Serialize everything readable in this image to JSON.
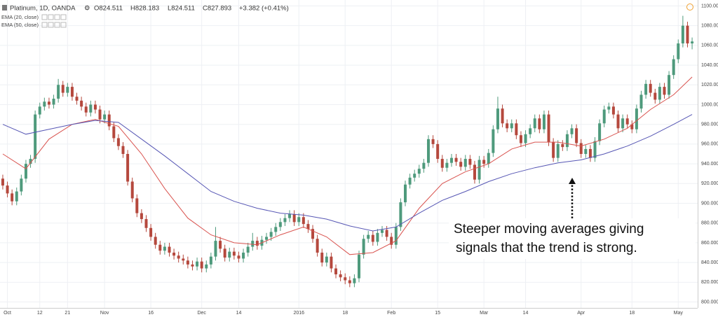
{
  "chart_data": {
    "type": "candlestick",
    "title": "Platinum, 1D, OANDA",
    "quote": [
      "O824.511",
      "H828.183",
      "L824.511",
      "C827.893",
      "+3.382 (+0.41%)"
    ],
    "annotation": [
      "Steeper moving averages giving",
      "signals that the trend is strong."
    ],
    "up_color": "#4e9a7c",
    "down_color": "#b5483d",
    "grid": true,
    "ylim": [
      794,
      1106
    ],
    "yticks": [
      {
        "value": 800,
        "label": "800.000"
      },
      {
        "value": 820,
        "label": "820.000"
      },
      {
        "value": 840,
        "label": "840.000"
      },
      {
        "value": 860,
        "label": "860.000"
      },
      {
        "value": 880,
        "label": "880.000"
      },
      {
        "value": 900,
        "label": "900.000"
      },
      {
        "value": 920,
        "label": "920.000"
      },
      {
        "value": 940,
        "label": "940.000"
      },
      {
        "value": 960,
        "label": "960.000"
      },
      {
        "value": 980,
        "label": "980.000"
      },
      {
        "value": 1000,
        "label": "1000.000"
      },
      {
        "value": 1020,
        "label": "1020.000"
      },
      {
        "value": 1040,
        "label": "1040.000"
      },
      {
        "value": 1060,
        "label": "1060.000"
      },
      {
        "value": 1080,
        "label": "1080.000"
      },
      {
        "value": 1100,
        "label": "1100.000"
      }
    ],
    "xlim": [
      -0.6,
      150.2
    ],
    "xticks": [
      {
        "value": 1,
        "label": "Oct"
      },
      {
        "value": 8,
        "label": "12"
      },
      {
        "value": 14,
        "label": "21"
      },
      {
        "value": 22,
        "label": "Nov"
      },
      {
        "value": 32,
        "label": "16"
      },
      {
        "value": 43,
        "label": "Dec"
      },
      {
        "value": 51,
        "label": "14"
      },
      {
        "value": 64,
        "label": "2016"
      },
      {
        "value": 74,
        "label": "18"
      },
      {
        "value": 84,
        "label": "Feb"
      },
      {
        "value": 94,
        "label": "15"
      },
      {
        "value": 104,
        "label": "Mar"
      },
      {
        "value": 113,
        "label": "14"
      },
      {
        "value": 125,
        "label": "Apr"
      },
      {
        "value": 136,
        "label": "18"
      },
      {
        "value": 146,
        "label": "May"
      }
    ],
    "x": [
      0,
      1,
      2,
      3,
      4,
      5,
      6,
      7,
      8,
      9,
      10,
      11,
      12,
      13,
      14,
      15,
      16,
      17,
      18,
      19,
      20,
      21,
      22,
      23,
      24,
      25,
      26,
      27,
      28,
      29,
      30,
      31,
      32,
      33,
      34,
      35,
      36,
      37,
      38,
      39,
      40,
      41,
      42,
      43,
      44,
      45,
      46,
      47,
      48,
      49,
      50,
      51,
      52,
      53,
      54,
      55,
      56,
      57,
      58,
      59,
      60,
      61,
      62,
      63,
      64,
      65,
      66,
      67,
      68,
      69,
      70,
      71,
      72,
      73,
      74,
      75,
      76,
      77,
      78,
      79,
      80,
      81,
      82,
      83,
      84,
      85,
      86,
      87,
      88,
      89,
      90,
      91,
      92,
      93,
      94,
      95,
      96,
      97,
      98,
      99,
      100,
      101,
      102,
      103,
      104,
      105,
      106,
      107,
      108,
      109,
      110,
      111,
      112,
      113,
      114,
      115,
      116,
      117,
      118,
      119,
      120,
      121,
      122,
      123,
      124,
      125,
      126,
      127,
      128,
      129,
      130,
      131,
      132,
      133,
      134,
      135,
      136,
      137,
      138,
      139,
      140,
      141,
      142,
      143,
      144,
      145,
      146,
      147,
      148,
      149
    ],
    "open": [
      925,
      918,
      910,
      902,
      912,
      925,
      940,
      945,
      990,
      998,
      1003,
      1000,
      1006,
      1020,
      1012,
      1018,
      1008,
      1004,
      998,
      992,
      1000,
      995,
      985,
      990,
      978,
      966,
      958,
      950,
      922,
      905,
      890,
      884,
      875,
      866,
      858,
      852,
      856,
      850,
      847,
      844,
      842,
      838,
      836,
      841,
      834,
      838,
      846,
      862,
      854,
      845,
      851,
      847,
      844,
      850,
      856,
      862,
      857,
      863,
      866,
      871,
      876,
      881,
      885,
      889,
      881,
      886,
      879,
      874,
      864,
      850,
      840,
      846,
      834,
      828,
      825,
      822,
      819,
      824,
      848,
      864,
      868,
      861,
      870,
      873,
      866,
      858,
      876,
      901,
      919,
      926,
      930,
      935,
      941,
      965,
      960,
      945,
      936,
      941,
      946,
      942,
      937,
      945,
      939,
      924,
      944,
      940,
      951,
      975,
      996,
      981,
      976,
      981,
      969,
      961,
      970,
      976,
      986,
      975,
      990,
      962,
      946,
      960,
      957,
      970,
      976,
      961,
      950,
      955,
      946,
      963,
      981,
      995,
      998,
      990,
      976,
      986,
      980,
      975,
      996,
      1010,
      1021,
      1012,
      1005,
      1018,
      1010,
      1030,
      1046,
      1062,
      1080,
      1062
    ],
    "high": [
      929,
      922,
      914,
      916,
      929,
      944,
      949,
      994,
      1002,
      1007,
      1007,
      1010,
      1026,
      1024,
      1022,
      1022,
      1012,
      1008,
      1002,
      1004,
      1004,
      999,
      994,
      994,
      982,
      970,
      962,
      954,
      926,
      909,
      894,
      888,
      879,
      870,
      862,
      860,
      860,
      854,
      851,
      848,
      846,
      842,
      845,
      845,
      842,
      850,
      876,
      866,
      858,
      855,
      855,
      851,
      854,
      860,
      870,
      866,
      867,
      870,
      875,
      880,
      885,
      889,
      893,
      893,
      890,
      890,
      883,
      878,
      868,
      854,
      850,
      850,
      838,
      832,
      829,
      826,
      828,
      852,
      868,
      872,
      872,
      874,
      877,
      877,
      870,
      880,
      905,
      923,
      930,
      934,
      939,
      945,
      969,
      969,
      964,
      949,
      945,
      950,
      950,
      946,
      949,
      949,
      943,
      948,
      948,
      955,
      979,
      1008,
      1000,
      985,
      985,
      985,
      973,
      974,
      980,
      990,
      990,
      994,
      994,
      966,
      964,
      964,
      974,
      980,
      980,
      965,
      959,
      959,
      967,
      985,
      999,
      1002,
      1002,
      994,
      990,
      990,
      984,
      1000,
      1014,
      1025,
      1025,
      1016,
      1022,
      1022,
      1034,
      1050,
      1066,
      1090,
      1084,
      1068
    ],
    "low": [
      914,
      906,
      898,
      898,
      908,
      921,
      936,
      941,
      986,
      994,
      996,
      996,
      1002,
      1008,
      1008,
      1004,
      1000,
      994,
      988,
      988,
      991,
      981,
      981,
      974,
      962,
      954,
      946,
      918,
      901,
      886,
      880,
      871,
      862,
      854,
      848,
      848,
      846,
      843,
      840,
      838,
      834,
      832,
      832,
      830,
      830,
      834,
      842,
      850,
      841,
      841,
      843,
      840,
      840,
      846,
      852,
      853,
      853,
      859,
      862,
      867,
      872,
      877,
      881,
      877,
      877,
      875,
      870,
      860,
      846,
      836,
      836,
      830,
      824,
      821,
      818,
      815,
      815,
      820,
      844,
      860,
      857,
      857,
      866,
      862,
      854,
      854,
      872,
      897,
      915,
      922,
      926,
      931,
      937,
      956,
      941,
      932,
      932,
      937,
      938,
      933,
      933,
      935,
      920,
      920,
      936,
      936,
      947,
      971,
      977,
      972,
      972,
      965,
      957,
      957,
      966,
      972,
      971,
      971,
      958,
      942,
      942,
      953,
      953,
      966,
      957,
      946,
      946,
      942,
      942,
      959,
      977,
      991,
      986,
      972,
      972,
      976,
      971,
      971,
      992,
      1006,
      1008,
      1001,
      1001,
      1006,
      1006,
      1026,
      1042,
      1058,
      1058,
      1056
    ],
    "close": [
      918,
      910,
      902,
      912,
      925,
      940,
      945,
      990,
      998,
      1003,
      1000,
      1006,
      1020,
      1012,
      1018,
      1008,
      1004,
      998,
      992,
      1000,
      995,
      985,
      990,
      978,
      966,
      958,
      950,
      922,
      905,
      890,
      884,
      875,
      866,
      858,
      852,
      856,
      850,
      847,
      844,
      842,
      838,
      836,
      841,
      834,
      838,
      846,
      862,
      854,
      845,
      851,
      847,
      844,
      850,
      856,
      862,
      857,
      863,
      866,
      871,
      876,
      881,
      885,
      889,
      881,
      886,
      879,
      874,
      864,
      850,
      840,
      846,
      834,
      828,
      825,
      822,
      819,
      824,
      848,
      864,
      868,
      861,
      870,
      873,
      866,
      858,
      876,
      901,
      919,
      926,
      930,
      935,
      941,
      965,
      960,
      945,
      936,
      941,
      946,
      942,
      937,
      945,
      939,
      924,
      944,
      940,
      951,
      975,
      996,
      981,
      976,
      981,
      969,
      961,
      970,
      976,
      986,
      975,
      990,
      962,
      946,
      960,
      957,
      970,
      976,
      961,
      950,
      955,
      946,
      963,
      981,
      995,
      998,
      990,
      976,
      986,
      980,
      975,
      996,
      1010,
      1021,
      1012,
      1005,
      1018,
      1010,
      1030,
      1046,
      1062,
      1080,
      1062,
      1064
    ],
    "series": [
      {
        "name": "EMA (20, close)",
        "color": "#d9534f",
        "x": [
          0,
          5,
          10,
          15,
          20,
          25,
          30,
          35,
          40,
          45,
          50,
          55,
          60,
          65,
          70,
          75,
          80,
          85,
          90,
          95,
          100,
          105,
          110,
          115,
          120,
          125,
          130,
          135,
          140,
          145,
          149
        ],
        "values": [
          950,
          935,
          965,
          980,
          985,
          978,
          950,
          915,
          885,
          868,
          860,
          858,
          868,
          876,
          866,
          848,
          850,
          862,
          895,
          920,
          932,
          940,
          955,
          962,
          962,
          958,
          965,
          976,
          995,
          1010,
          1028
        ]
      },
      {
        "name": "EMA (50, close)",
        "color": "#5656b4",
        "x": [
          0,
          5,
          10,
          15,
          20,
          25,
          30,
          35,
          40,
          45,
          50,
          55,
          60,
          65,
          70,
          75,
          80,
          85,
          90,
          95,
          100,
          105,
          110,
          115,
          120,
          125,
          130,
          135,
          140,
          145,
          149
        ],
        "values": [
          980,
          970,
          975,
          980,
          984,
          982,
          965,
          948,
          930,
          912,
          902,
          895,
          890,
          888,
          884,
          877,
          872,
          876,
          890,
          903,
          912,
          922,
          930,
          936,
          941,
          944,
          950,
          958,
          968,
          980,
          990
        ]
      }
    ]
  }
}
